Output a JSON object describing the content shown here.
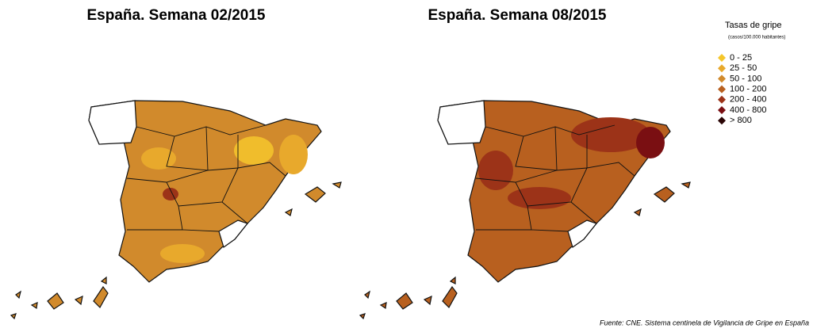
{
  "maps": [
    {
      "title": "España. Semana 02/2015"
    },
    {
      "title": "España. Semana 08/2015"
    }
  ],
  "legend": {
    "title": "Tasas de gripe",
    "subtitle": "(casos/100.000 habitantes)",
    "items": [
      {
        "label": "0 - 25",
        "color": "#f5c62a"
      },
      {
        "label": "25 - 50",
        "color": "#e8a92c"
      },
      {
        "label": "50 - 100",
        "color": "#d18a2c"
      },
      {
        "label": "100 - 200",
        "color": "#b8601f"
      },
      {
        "label": "200 - 400",
        "color": "#9c3318"
      },
      {
        "label": "400 - 800",
        "color": "#7a0f12"
      },
      {
        "label": "> 800",
        "color": "#2a0505"
      }
    ]
  },
  "source": "Fuente: CNE. Sistema centinela de Vigilancia de Gripe en España"
}
